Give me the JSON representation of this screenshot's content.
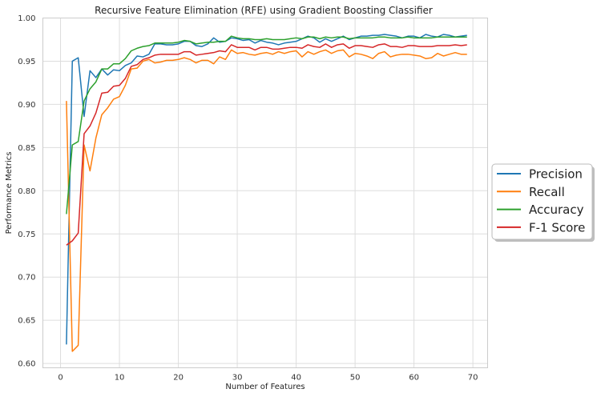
{
  "chart_data": {
    "type": "line",
    "title": "Recursive Feature Elimination (RFE) using Gradient Boosting Classifier",
    "xlabel": "Number of Features",
    "ylabel": "Performance Metrics",
    "xlim": [
      -3,
      72.5
    ],
    "ylim": [
      0.595,
      1.0
    ],
    "xticks": [
      "0",
      "10",
      "20",
      "30",
      "40",
      "50",
      "60",
      "70"
    ],
    "yticks": [
      "0.60",
      "0.65",
      "0.70",
      "0.75",
      "0.80",
      "0.85",
      "0.90",
      "0.95",
      "1.00"
    ],
    "grid": true,
    "legend_position": "right-outside",
    "x": [
      1,
      2,
      3,
      4,
      5,
      6,
      7,
      8,
      9,
      10,
      11,
      12,
      13,
      14,
      15,
      16,
      17,
      18,
      19,
      20,
      21,
      22,
      23,
      24,
      25,
      26,
      27,
      28,
      29,
      30,
      31,
      32,
      33,
      34,
      35,
      36,
      37,
      38,
      39,
      40,
      41,
      42,
      43,
      44,
      45,
      46,
      47,
      48,
      49,
      50,
      51,
      52,
      53,
      54,
      55,
      56,
      57,
      58,
      59,
      60,
      61,
      62,
      63,
      64,
      65,
      66,
      67,
      68,
      69
    ],
    "series": [
      {
        "name": "Precision",
        "color": "#1f77b4",
        "values": [
          0.622,
          0.95,
          0.954,
          0.886,
          0.939,
          0.931,
          0.941,
          0.934,
          0.94,
          0.939,
          0.945,
          0.948,
          0.956,
          0.955,
          0.958,
          0.97,
          0.97,
          0.969,
          0.969,
          0.97,
          0.973,
          0.973,
          0.968,
          0.967,
          0.97,
          0.977,
          0.972,
          0.973,
          0.977,
          0.976,
          0.974,
          0.975,
          0.971,
          0.974,
          0.972,
          0.971,
          0.969,
          0.971,
          0.972,
          0.973,
          0.976,
          0.979,
          0.977,
          0.972,
          0.976,
          0.973,
          0.976,
          0.979,
          0.975,
          0.977,
          0.979,
          0.979,
          0.98,
          0.98,
          0.981,
          0.98,
          0.979,
          0.977,
          0.979,
          0.979,
          0.977,
          0.981,
          0.979,
          0.978,
          0.981,
          0.98,
          0.978,
          0.979,
          0.98
        ]
      },
      {
        "name": "Recall",
        "color": "#ff7f0e",
        "values": [
          0.904,
          0.614,
          0.621,
          0.853,
          0.823,
          0.861,
          0.888,
          0.896,
          0.906,
          0.909,
          0.922,
          0.941,
          0.942,
          0.95,
          0.952,
          0.948,
          0.949,
          0.951,
          0.951,
          0.952,
          0.954,
          0.952,
          0.948,
          0.951,
          0.951,
          0.947,
          0.955,
          0.952,
          0.963,
          0.959,
          0.96,
          0.958,
          0.957,
          0.959,
          0.96,
          0.958,
          0.961,
          0.959,
          0.961,
          0.962,
          0.955,
          0.961,
          0.958,
          0.961,
          0.963,
          0.959,
          0.962,
          0.963,
          0.955,
          0.959,
          0.958,
          0.956,
          0.953,
          0.959,
          0.961,
          0.955,
          0.957,
          0.958,
          0.958,
          0.957,
          0.956,
          0.953,
          0.954,
          0.959,
          0.956,
          0.958,
          0.96,
          0.958,
          0.958
        ]
      },
      {
        "name": "Accuracy",
        "color": "#2ca02c",
        "values": [
          0.773,
          0.853,
          0.857,
          0.904,
          0.918,
          0.926,
          0.941,
          0.941,
          0.947,
          0.947,
          0.953,
          0.962,
          0.965,
          0.967,
          0.968,
          0.971,
          0.971,
          0.971,
          0.971,
          0.972,
          0.974,
          0.973,
          0.97,
          0.971,
          0.972,
          0.972,
          0.973,
          0.973,
          0.979,
          0.977,
          0.976,
          0.976,
          0.975,
          0.975,
          0.976,
          0.975,
          0.975,
          0.975,
          0.976,
          0.977,
          0.976,
          0.978,
          0.978,
          0.976,
          0.978,
          0.977,
          0.978,
          0.978,
          0.976,
          0.977,
          0.977,
          0.977,
          0.977,
          0.978,
          0.978,
          0.977,
          0.977,
          0.977,
          0.978,
          0.977,
          0.977,
          0.977,
          0.977,
          0.978,
          0.978,
          0.978,
          0.978,
          0.978,
          0.978
        ]
      },
      {
        "name": "F-1 Score",
        "color": "#d62728",
        "values": [
          0.737,
          0.742,
          0.751,
          0.866,
          0.875,
          0.89,
          0.913,
          0.914,
          0.921,
          0.922,
          0.93,
          0.944,
          0.946,
          0.952,
          0.954,
          0.957,
          0.958,
          0.958,
          0.958,
          0.958,
          0.961,
          0.961,
          0.957,
          0.958,
          0.959,
          0.96,
          0.962,
          0.961,
          0.969,
          0.966,
          0.966,
          0.966,
          0.963,
          0.966,
          0.966,
          0.964,
          0.964,
          0.965,
          0.966,
          0.966,
          0.965,
          0.969,
          0.967,
          0.966,
          0.97,
          0.966,
          0.969,
          0.97,
          0.965,
          0.968,
          0.968,
          0.967,
          0.966,
          0.969,
          0.97,
          0.967,
          0.967,
          0.966,
          0.968,
          0.968,
          0.967,
          0.967,
          0.967,
          0.968,
          0.968,
          0.968,
          0.969,
          0.968,
          0.969
        ]
      }
    ]
  }
}
